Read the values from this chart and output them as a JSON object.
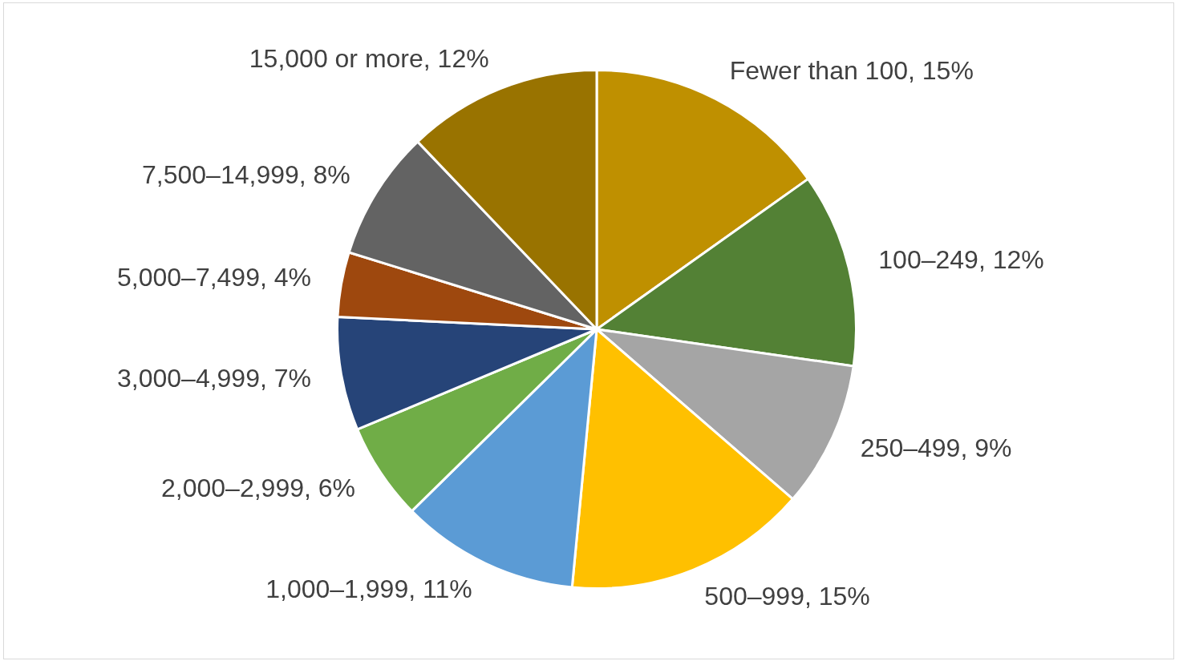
{
  "chart_data": {
    "type": "pie",
    "categories": [
      "Fewer than 100",
      "100–249",
      "250–499",
      "500–999",
      "1,000–1,999",
      "2,000–2,999",
      "3,000–4,999",
      "5,000–7,499",
      "7,500–14,999",
      "15,000 or more"
    ],
    "values": [
      15,
      12,
      9,
      15,
      11,
      6,
      7,
      4,
      8,
      12
    ],
    "value_labels": [
      "15%",
      "12%",
      "9%",
      "15%",
      "11%",
      "6%",
      "7%",
      "4%",
      "8%",
      "12%"
    ],
    "colors": [
      "#bf9000",
      "#538135",
      "#a5a5a5",
      "#ffc000",
      "#5b9bd5",
      "#70ad47",
      "#264478",
      "#9e480e",
      "#636363",
      "#997300"
    ],
    "legend": false
  }
}
